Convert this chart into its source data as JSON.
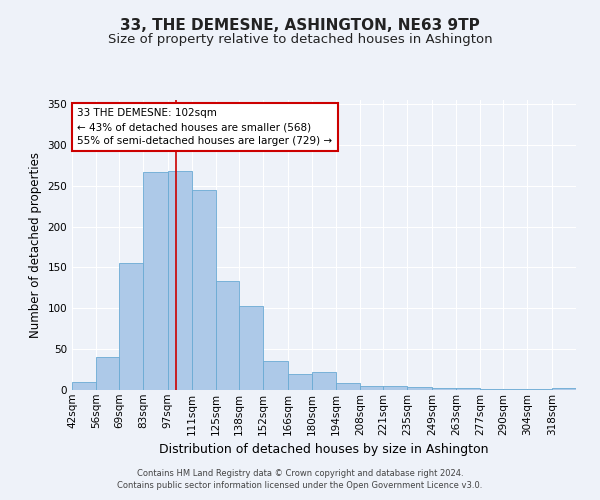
{
  "title": "33, THE DEMESNE, ASHINGTON, NE63 9TP",
  "subtitle": "Size of property relative to detached houses in Ashington",
  "xlabel": "Distribution of detached houses by size in Ashington",
  "ylabel": "Number of detached properties",
  "bin_labels": [
    "42sqm",
    "56sqm",
    "69sqm",
    "83sqm",
    "97sqm",
    "111sqm",
    "125sqm",
    "138sqm",
    "152sqm",
    "166sqm",
    "180sqm",
    "194sqm",
    "208sqm",
    "221sqm",
    "235sqm",
    "249sqm",
    "263sqm",
    "277sqm",
    "290sqm",
    "304sqm",
    "318sqm"
  ],
  "bar_heights": [
    10,
    41,
    155,
    267,
    268,
    245,
    133,
    103,
    35,
    19,
    22,
    8,
    5,
    5,
    4,
    2,
    2,
    1,
    1,
    1,
    2
  ],
  "bar_color": "#adc9e8",
  "bar_edge_color": "#6aaad4",
  "vline_x_idx": 4,
  "bins_start": [
    42,
    56,
    69,
    83,
    97,
    111,
    125,
    138,
    152,
    166,
    180,
    194,
    208,
    221,
    235,
    249,
    263,
    277,
    290,
    304,
    318
  ],
  "annotation_title": "33 THE DEMESNE: 102sqm",
  "annotation_line1": "← 43% of detached houses are smaller (568)",
  "annotation_line2": "55% of semi-detached houses are larger (729) →",
  "annotation_box_color": "#ffffff",
  "annotation_border_color": "#cc0000",
  "vline_color": "#cc0000",
  "vline_x": 102,
  "ylim": [
    0,
    355
  ],
  "yticks": [
    0,
    50,
    100,
    150,
    200,
    250,
    300,
    350
  ],
  "footer1": "Contains HM Land Registry data © Crown copyright and database right 2024.",
  "footer2": "Contains public sector information licensed under the Open Government Licence v3.0.",
  "background_color": "#eef2f9",
  "grid_color": "#ffffff",
  "title_fontsize": 11,
  "subtitle_fontsize": 9.5,
  "xlabel_fontsize": 9,
  "ylabel_fontsize": 8.5,
  "tick_fontsize": 7.5,
  "footer_fontsize": 6
}
